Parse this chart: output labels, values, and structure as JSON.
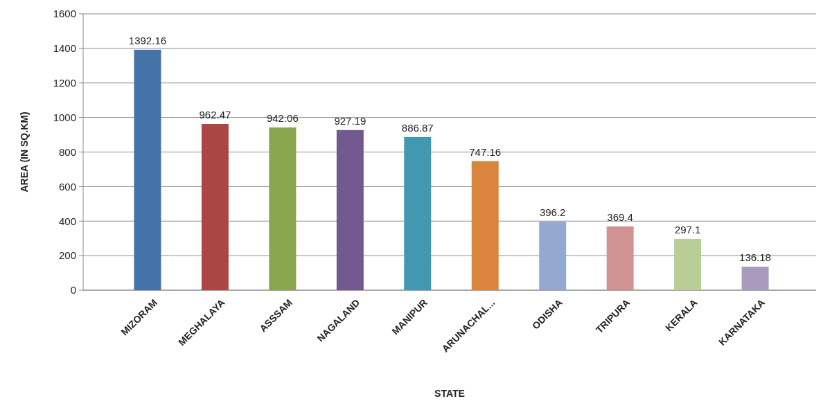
{
  "chart_data": {
    "type": "bar",
    "xlabel": "STATE",
    "ylabel": "AREA (IN SQ.KM)",
    "categories": [
      "MIZORAM",
      "MEGHALAYA",
      "ASSSAM",
      "NAGALAND",
      "MANIPUR",
      "ARUNACHAL...",
      "ODISHA",
      "TRIPURA",
      "KERALA",
      "KARNATAKA"
    ],
    "values": [
      1392.16,
      962.47,
      942.06,
      927.19,
      886.87,
      747.16,
      396.2,
      369.4,
      297.1,
      136.18
    ],
    "colors": [
      "#4572a7",
      "#aa4643",
      "#89a54e",
      "#71588f",
      "#4198af",
      "#db843d",
      "#93a9cf",
      "#d19392",
      "#b9cd96",
      "#a99bbd"
    ],
    "ylim": [
      0,
      1600
    ],
    "yticks": [
      0,
      200,
      400,
      600,
      800,
      1000,
      1200,
      1400,
      1600
    ],
    "grid": "y",
    "data_labels": true
  }
}
